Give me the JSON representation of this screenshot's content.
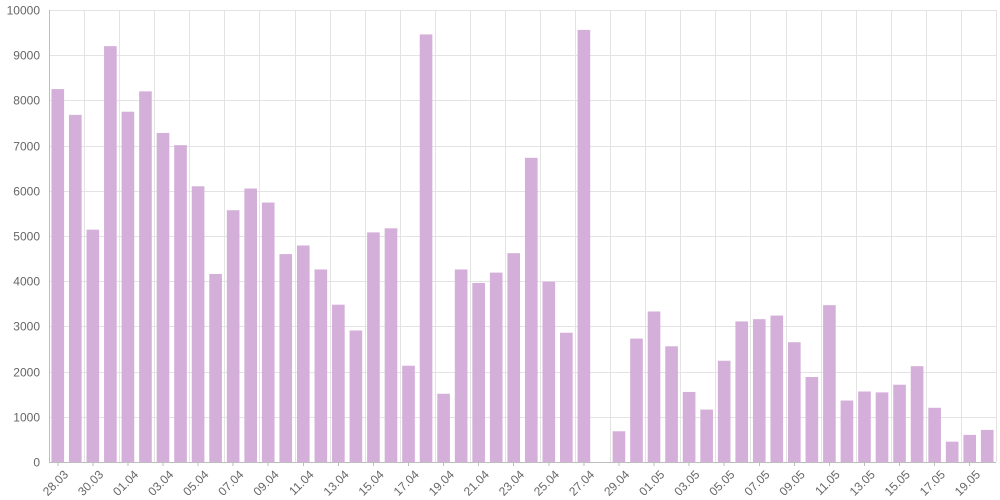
{
  "chart_data": {
    "type": "bar",
    "title": "",
    "xlabel": "",
    "ylabel": "",
    "ylim": [
      0,
      10000
    ],
    "yticks": [
      0,
      1000,
      2000,
      3000,
      4000,
      5000,
      6000,
      7000,
      8000,
      9000,
      10000
    ],
    "grid": true,
    "bar_color": "#d4afd9",
    "categories": [
      "28.03",
      "29.03",
      "30.03",
      "31.03",
      "01.04",
      "02.04",
      "03.04",
      "04.04",
      "05.04",
      "06.04",
      "07.04",
      "08.04",
      "09.04",
      "10.04",
      "11.04",
      "12.04",
      "13.04",
      "14.04",
      "15.04",
      "16.04",
      "17.04",
      "18.04",
      "19.04",
      "20.04",
      "21.04",
      "22.04",
      "23.04",
      "24.04",
      "25.04",
      "26.04",
      "27.04",
      "28.04",
      "29.04",
      "30.04",
      "01.05",
      "02.05",
      "03.05",
      "04.05",
      "05.05",
      "06.05",
      "07.05",
      "08.05",
      "09.05",
      "10.05",
      "11.05",
      "12.05",
      "13.05",
      "14.05",
      "15.05",
      "16.05",
      "17.05",
      "18.05",
      "19.05",
      "20.05"
    ],
    "xtick_labels": [
      "28.03",
      "30.03",
      "01.04",
      "03.04",
      "05.04",
      "07.04",
      "09.04",
      "11.04",
      "13.04",
      "15.04",
      "17.04",
      "19.04",
      "21.04",
      "23.04",
      "25.04",
      "27.04",
      "29.04",
      "01.05",
      "03.05",
      "05.05",
      "07.05",
      "09.05",
      "11.05",
      "13.05",
      "15.05",
      "17.05",
      "19.05"
    ],
    "values": [
      8250,
      7680,
      5140,
      9200,
      7750,
      8200,
      7280,
      7010,
      6100,
      4160,
      5570,
      6050,
      5740,
      4600,
      4790,
      4260,
      3480,
      2910,
      5080,
      5170,
      2130,
      9460,
      1510,
      4260,
      3960,
      4190,
      4620,
      6730,
      3990,
      2860,
      9560,
      0,
      680,
      2730,
      3330,
      2560,
      1550,
      1160,
      2240,
      3110,
      3160,
      3240,
      2650,
      1880,
      3470,
      1360,
      1560,
      1540,
      1710,
      2120,
      1200,
      450,
      600,
      710
    ]
  }
}
